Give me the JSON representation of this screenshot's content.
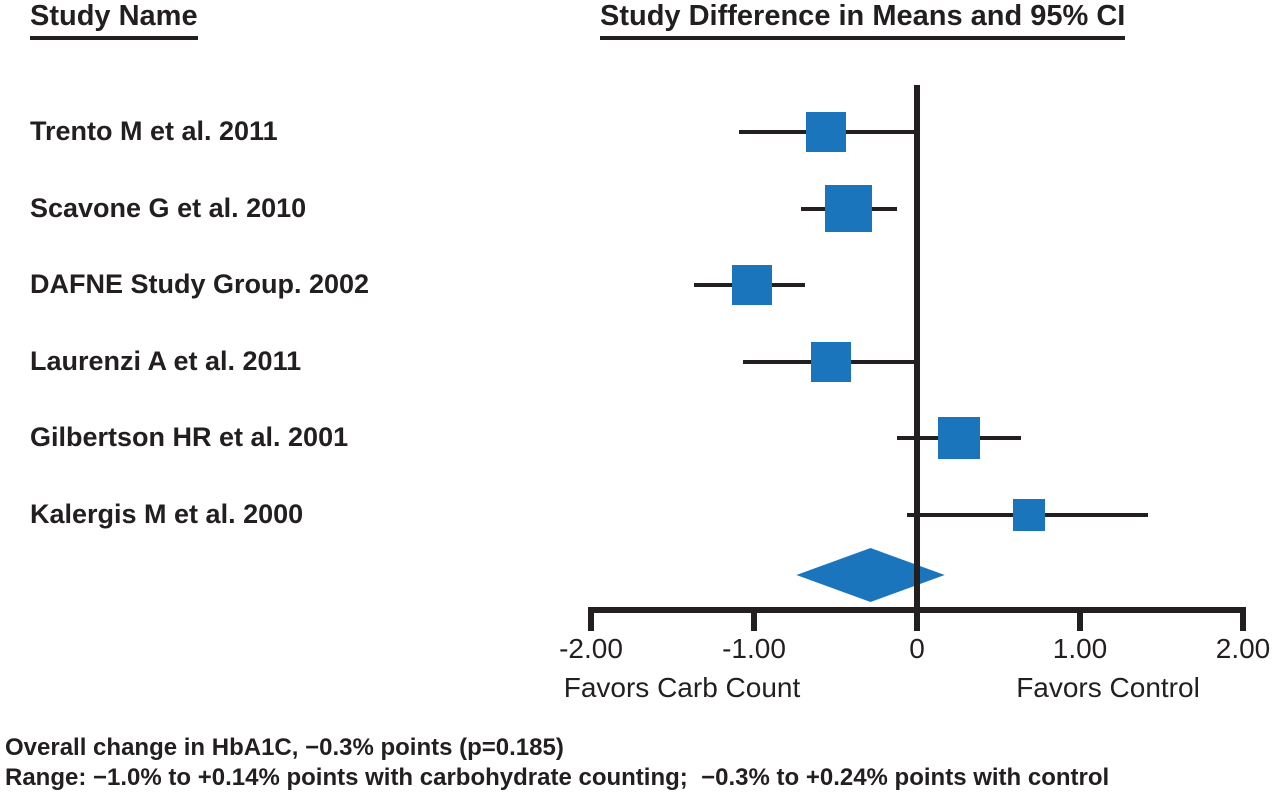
{
  "figure": {
    "title_left": "Study Name",
    "title_right": "Study Difference in Means and 95% CI",
    "footnote_line1": "Overall change in HbA1C, −0.3% points (p=0.185)",
    "footnote_line2": "Range: −1.0% to +0.14% points with carbohydrate counting;  −0.3% to +0.24% points with control"
  },
  "chart_data": {
    "type": "forest",
    "title": "Study Difference in Means and 95% CI",
    "axis": {
      "min": -2.0,
      "max": 2.0,
      "ticks": [
        -2,
        -1,
        0,
        1,
        2
      ],
      "tick_labels": [
        "-2.00",
        "-1.00",
        "0",
        "1.00",
        "2.00"
      ],
      "zero_reference_line": true
    },
    "favors_left_label": "Favors Carb Count",
    "favors_right_label": "Favors Control",
    "units": "HbA1C % points difference in means",
    "studies": [
      {
        "label": "Trento M et al. 2011",
        "mean": -0.56,
        "ci_low": -1.09,
        "ci_high": -0.02,
        "marker_px": 40
      },
      {
        "label": "Scavone G et al. 2010",
        "mean": -0.42,
        "ci_low": -0.71,
        "ci_high": -0.12,
        "marker_px": 47
      },
      {
        "label": "DAFNE Study Group. 2002",
        "mean": -1.01,
        "ci_low": -1.37,
        "ci_high": -0.69,
        "marker_px": 40
      },
      {
        "label": "Laurenzi A et al. 2011",
        "mean": -0.53,
        "ci_low": -1.07,
        "ci_high": -0.01,
        "marker_px": 40
      },
      {
        "label": "Gilbertson HR et al. 2001",
        "mean": 0.26,
        "ci_low": -0.12,
        "ci_high": 0.64,
        "marker_px": 42
      },
      {
        "label": "Kalergis M et al. 2000",
        "mean": 0.69,
        "ci_low": -0.06,
        "ci_high": 1.42,
        "marker_px": 32
      }
    ],
    "overall": {
      "mean": -0.28,
      "ci_low": -0.74,
      "ci_high": 0.17,
      "p_value": 0.185
    },
    "colors": {
      "marker": "#1b75bc",
      "line": "#231f20",
      "text": "#231f20"
    }
  }
}
